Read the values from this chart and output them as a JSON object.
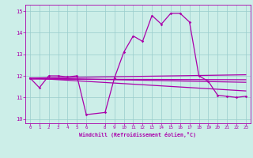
{
  "xlabel": "Windchill (Refroidissement éolien,°C)",
  "bg_color": "#cceee8",
  "grid_color": "#99cccc",
  "line_color": "#aa00aa",
  "xlim": [
    -0.5,
    23.5
  ],
  "ylim": [
    9.8,
    15.3
  ],
  "yticks": [
    10,
    11,
    12,
    13,
    14,
    15
  ],
  "xticks": [
    0,
    1,
    2,
    3,
    4,
    5,
    6,
    8,
    9,
    10,
    11,
    12,
    13,
    14,
    15,
    16,
    17,
    18,
    19,
    20,
    21,
    22,
    23
  ],
  "series1_x": [
    0,
    1,
    2,
    3,
    4,
    5,
    6,
    8,
    9,
    10,
    11,
    12,
    13,
    14,
    15,
    16,
    17,
    18,
    19,
    20,
    21,
    22,
    23
  ],
  "series1_y": [
    11.9,
    11.45,
    12.0,
    12.0,
    11.95,
    12.0,
    10.2,
    10.3,
    11.9,
    13.1,
    13.85,
    13.6,
    14.8,
    14.4,
    14.9,
    14.9,
    14.5,
    12.0,
    11.75,
    11.1,
    11.05,
    11.0,
    11.05
  ],
  "line2_x": [
    0,
    23
  ],
  "line2_y": [
    11.9,
    12.05
  ],
  "line3_x": [
    0,
    23
  ],
  "line3_y": [
    11.9,
    11.7
  ],
  "line4_x": [
    0,
    23
  ],
  "line4_y": [
    11.9,
    11.3
  ],
  "line5_x": [
    0,
    23
  ],
  "line5_y": [
    11.85,
    11.82
  ]
}
